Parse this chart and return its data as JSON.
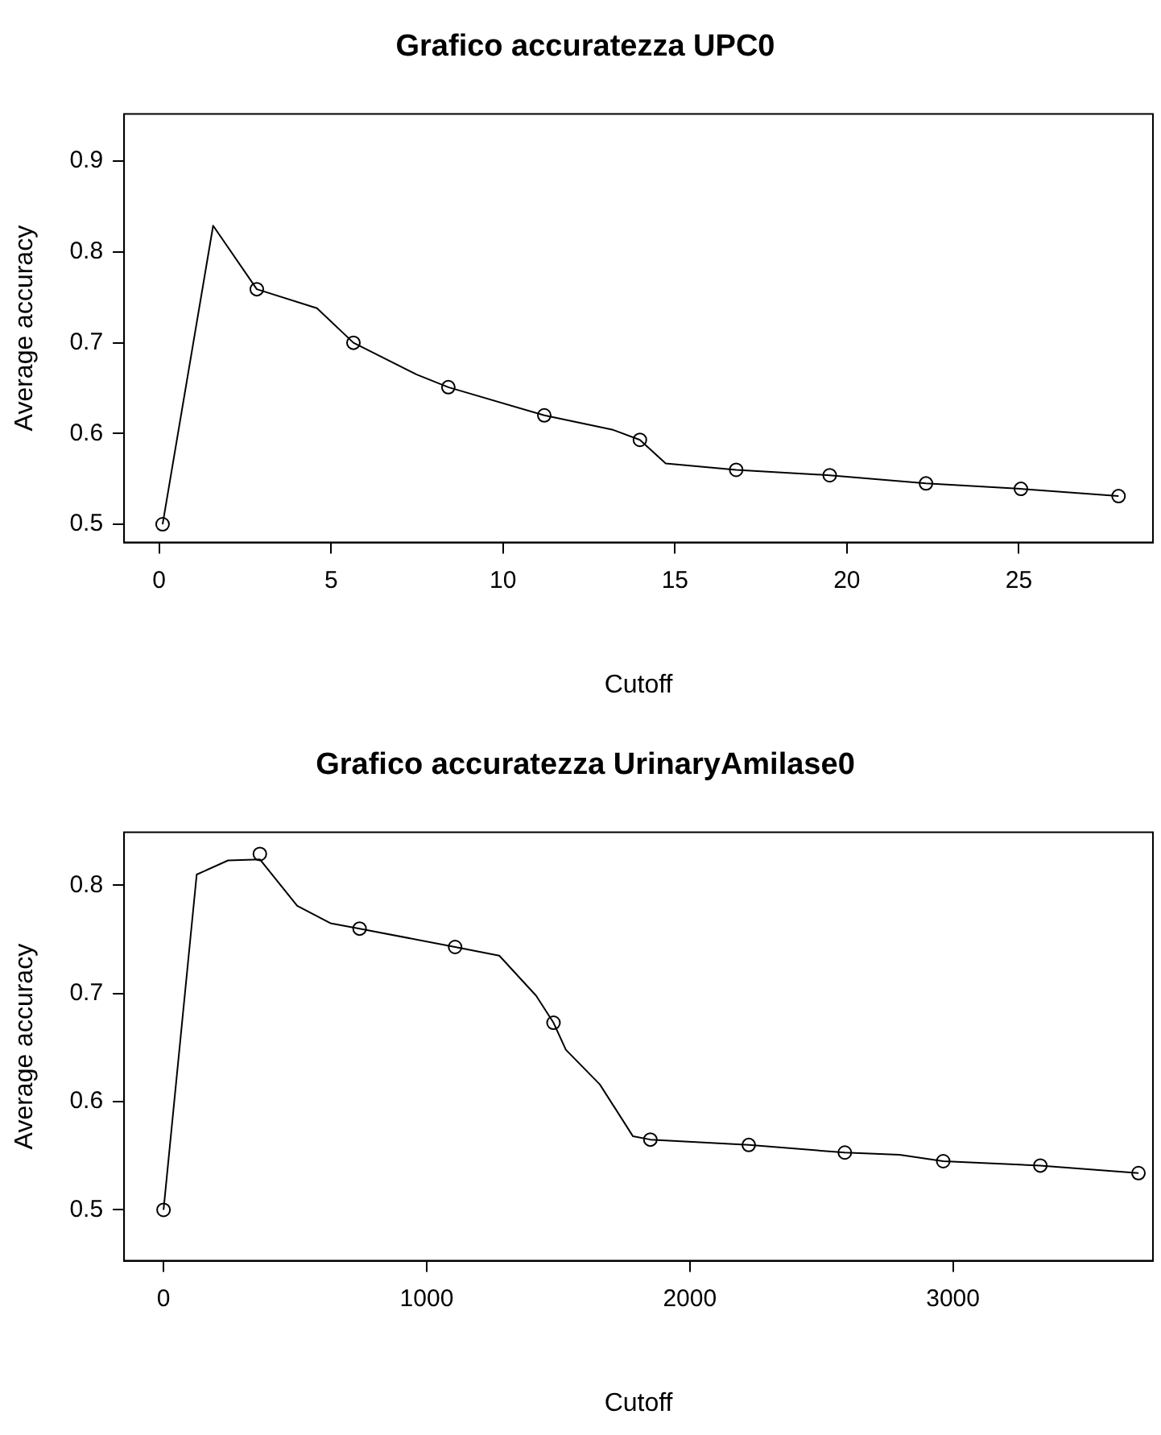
{
  "chart_data": [
    {
      "type": "line",
      "title": "Grafico accuratezza UPC0",
      "xlabel": "Cutoff",
      "ylabel": "Average accuracy",
      "xlim": [
        -1.02,
        28.9
      ],
      "ylim": [
        0.48,
        0.952
      ],
      "xticks": [
        0,
        5,
        10,
        15,
        20,
        25
      ],
      "yticks": [
        0.5,
        0.6,
        0.7,
        0.8,
        0.9
      ],
      "grid": false,
      "series": [
        {
          "type": "line",
          "marker": "none",
          "color": "#000000",
          "x": [
            0.1,
            1.57,
            2.84,
            4.59,
            5.65,
            7.49,
            8.41,
            11.2,
            13.2,
            13.98,
            14.73,
            16.78,
            19.5,
            22.3,
            25.06,
            27.9
          ],
          "values": [
            0.5,
            0.829,
            0.759,
            0.738,
            0.7,
            0.665,
            0.651,
            0.62,
            0.604,
            0.593,
            0.567,
            0.56,
            0.554,
            0.545,
            0.539,
            0.531
          ]
        },
        {
          "type": "scatter",
          "marker": "circle",
          "color": "#000000",
          "x": [
            0.1,
            2.84,
            5.65,
            8.41,
            11.2,
            13.98,
            16.78,
            19.5,
            22.3,
            25.06,
            27.9
          ],
          "values": [
            0.5,
            0.759,
            0.7,
            0.651,
            0.62,
            0.593,
            0.56,
            0.554,
            0.545,
            0.539,
            0.531
          ]
        }
      ]
    },
    {
      "type": "line",
      "title": "Grafico accuratezza UrinaryAmilase0",
      "xlabel": "Cutoff",
      "ylabel": "Average accuracy",
      "xlim": [
        -150,
        3760
      ],
      "ylim": [
        0.453,
        0.849
      ],
      "xticks": [
        0,
        1000,
        2000,
        3000
      ],
      "yticks": [
        0.5,
        0.6,
        0.7,
        0.8
      ],
      "grid": false,
      "series": [
        {
          "type": "line",
          "marker": "none",
          "color": "#000000",
          "x": [
            0,
            126,
            245,
            366,
            508,
            634,
            745,
            1108,
            1276,
            1416,
            1482,
            1529,
            1658,
            1784,
            1850,
            2224,
            2589,
            2797,
            2963,
            3332,
            3705
          ],
          "values": [
            0.5,
            0.81,
            0.823,
            0.824,
            0.781,
            0.765,
            0.76,
            0.743,
            0.735,
            0.698,
            0.673,
            0.648,
            0.616,
            0.568,
            0.565,
            0.56,
            0.553,
            0.551,
            0.545,
            0.541,
            0.534
          ]
        },
        {
          "type": "scatter",
          "marker": "circle",
          "color": "#000000",
          "x": [
            0,
            366,
            745,
            1108,
            1482,
            1850,
            2224,
            2589,
            2963,
            3332,
            3705
          ],
          "values": [
            0.5,
            0.829,
            0.76,
            0.743,
            0.673,
            0.565,
            0.56,
            0.553,
            0.545,
            0.541,
            0.534
          ]
        }
      ]
    }
  ]
}
